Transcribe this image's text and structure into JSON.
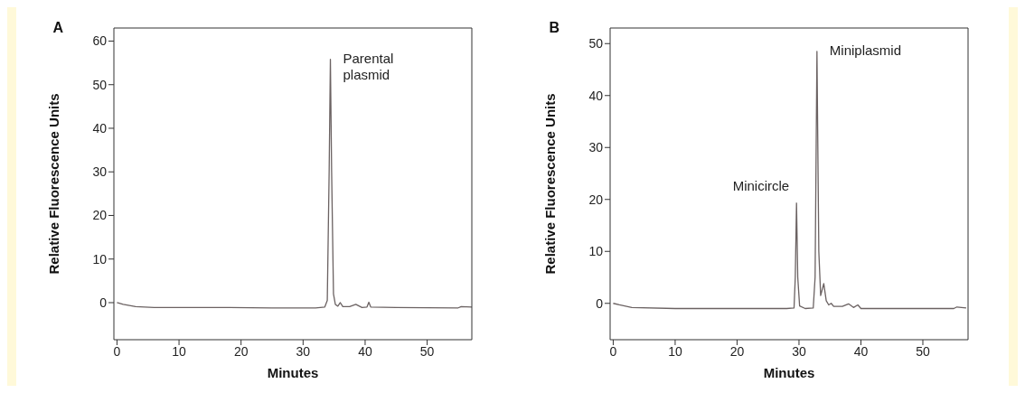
{
  "chart_data": [
    {
      "type": "line",
      "title": "A",
      "xlabel": "Minutes",
      "ylabel": "Relative Fluorescence Units",
      "xlim": [
        -0.5,
        57.2
      ],
      "ylim": [
        -8.5,
        63
      ],
      "xticks": [
        0,
        10,
        20,
        30,
        40,
        50
      ],
      "yticks": [
        0,
        10,
        20,
        30,
        40,
        50,
        60
      ],
      "grid": false,
      "legend": false,
      "marker": "none",
      "line_style": "solid",
      "annotations": [
        {
          "text": "Parental plasmid",
          "x": 34.4,
          "y": 55.8
        }
      ],
      "series": [
        {
          "color": "#6b6262",
          "x": [
            0,
            1,
            3,
            6,
            15,
            25,
            32,
            33.5,
            33.9,
            34.2,
            34.4,
            34.6,
            34.9,
            35.2,
            35.6,
            36,
            36.4,
            37.5,
            38.5,
            39.5,
            40.3,
            40.6,
            40.9,
            45,
            55,
            55.5,
            57.2
          ],
          "values": [
            0,
            -0.4,
            -0.9,
            -1.1,
            -1.1,
            -1.2,
            -1.2,
            -1,
            0.5,
            30,
            55.8,
            30,
            2,
            -0.4,
            -0.8,
            0,
            -0.9,
            -0.9,
            -0.4,
            -1.1,
            -1,
            0.1,
            -1,
            -1.1,
            -1.2,
            -0.9,
            -1
          ]
        }
      ]
    },
    {
      "type": "line",
      "title": "B",
      "xlabel": "Minutes",
      "ylabel": "Relative Fluorescence Units",
      "xlim": [
        -0.5,
        57.3
      ],
      "ylim": [
        -7,
        53
      ],
      "xticks": [
        0,
        10,
        20,
        30,
        40,
        50
      ],
      "yticks": [
        0,
        10,
        20,
        30,
        40,
        50
      ],
      "grid": false,
      "legend": false,
      "marker": "none",
      "line_style": "solid",
      "annotations": [
        {
          "text": "Minicircle",
          "x": 29.6,
          "y": 19.3
        },
        {
          "text": "Miniplasmid",
          "x": 32.9,
          "y": 48.5
        }
      ],
      "series": [
        {
          "color": "#6b6262",
          "x": [
            0,
            1,
            3,
            10,
            20,
            28,
            29.2,
            29.4,
            29.6,
            29.8,
            30.1,
            31,
            32.3,
            32.6,
            32.9,
            33.2,
            33.5,
            34,
            34.4,
            34.8,
            35.2,
            35.6,
            37,
            38,
            38.8,
            39.5,
            40,
            45,
            55,
            55.5,
            57
          ],
          "values": [
            0,
            -0.3,
            -0.8,
            -1,
            -1,
            -1,
            -0.9,
            5,
            19.3,
            5,
            -0.5,
            -1,
            -0.9,
            5,
            48.5,
            10,
            1.5,
            3.8,
            0.5,
            -0.3,
            0,
            -0.6,
            -0.6,
            -0.1,
            -0.8,
            -0.3,
            -1,
            -1,
            -1,
            -0.7,
            -0.9
          ]
        }
      ]
    }
  ]
}
